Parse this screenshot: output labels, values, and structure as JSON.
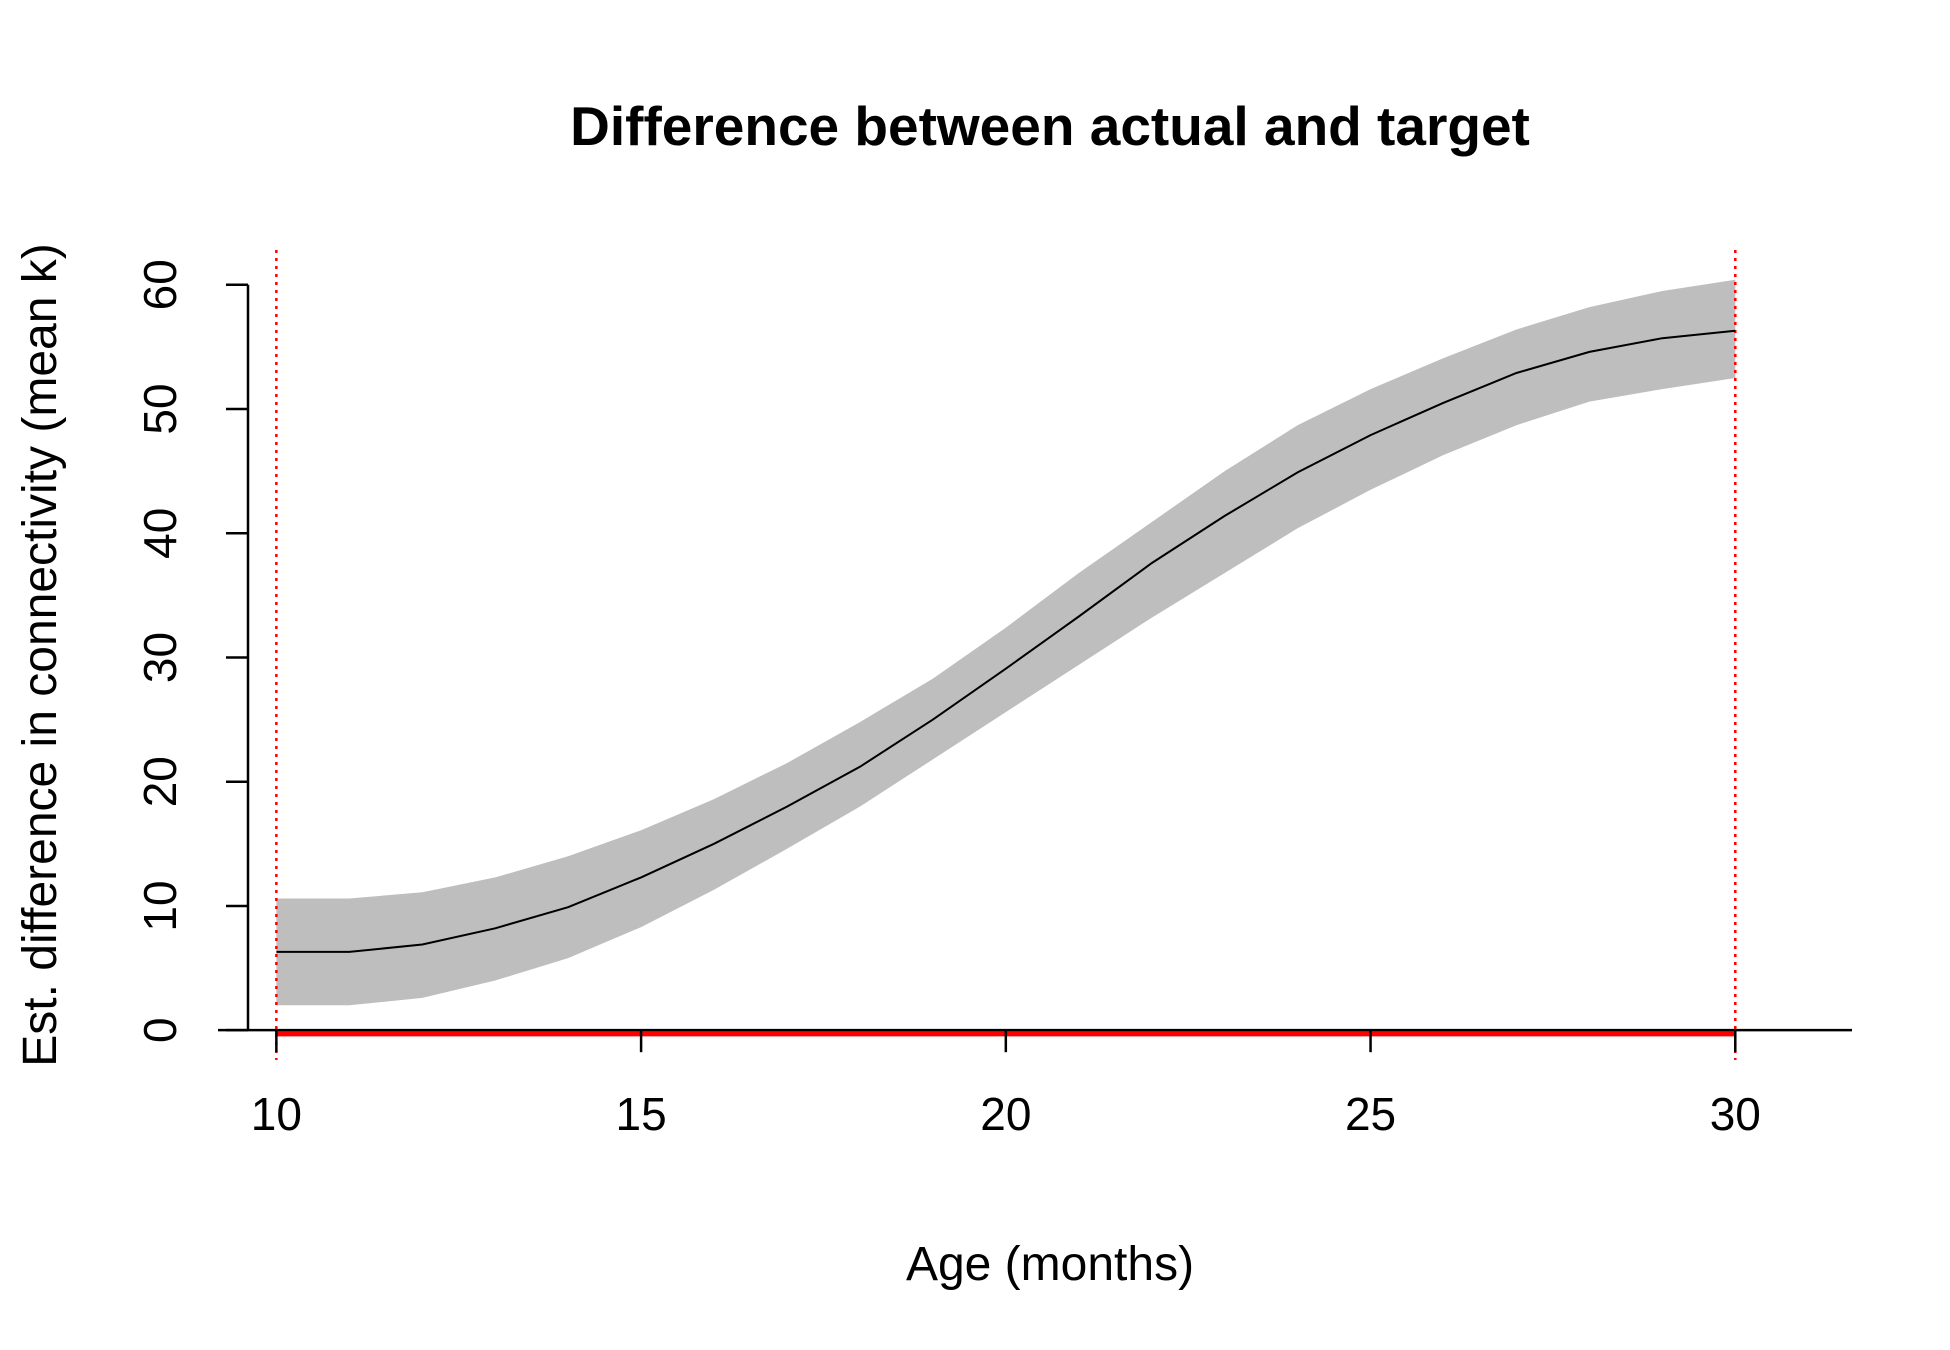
{
  "chart_data": {
    "type": "line",
    "title": "Difference between actual and target",
    "xlabel": "Age (months)",
    "ylabel": "Est. difference in connectivity (mean k)",
    "xlim": [
      9.2,
      31.6
    ],
    "ylim": [
      -2.4,
      62.8
    ],
    "xticks": [
      10,
      15,
      20,
      25,
      30
    ],
    "yticks": [
      0,
      10,
      20,
      30,
      40,
      50,
      60
    ],
    "series": [
      {
        "type": "line",
        "x": [
          10,
          11,
          12,
          13,
          14,
          15,
          16,
          17,
          18,
          19,
          20,
          21,
          22,
          23,
          24,
          25,
          26,
          27,
          28,
          29,
          30
        ],
        "y": [
          6.3,
          6.3,
          6.9,
          8.2,
          9.9,
          12.3,
          15.0,
          18.0,
          21.2,
          25.0,
          29.1,
          33.3,
          37.6,
          41.4,
          44.9,
          47.9,
          50.5,
          52.9,
          54.6,
          55.7,
          56.3
        ],
        "lower": [
          2.0,
          2.0,
          2.6,
          4.0,
          5.8,
          8.3,
          11.3,
          14.6,
          18.0,
          21.8,
          25.6,
          29.4,
          33.2,
          36.8,
          40.4,
          43.5,
          46.3,
          48.7,
          50.6,
          51.6,
          52.5
        ],
        "upper": [
          10.6,
          10.6,
          11.1,
          12.3,
          14.0,
          16.1,
          18.6,
          21.5,
          24.8,
          28.3,
          32.4,
          36.8,
          40.9,
          45.0,
          48.7,
          51.6,
          54.1,
          56.4,
          58.2,
          59.5,
          60.4
        ]
      }
    ],
    "reference_lines": {
      "horizontal": [
        {
          "y": -0.3,
          "color": "#ff0000"
        }
      ],
      "vertical": [
        {
          "x": 10,
          "color": "#ff0000"
        },
        {
          "x": 30,
          "color": "#ff0000"
        }
      ]
    },
    "colors": {
      "band": "#bebebe",
      "line": "#000000",
      "reference": "#ff0000"
    },
    "grid": false,
    "legend": "none"
  }
}
